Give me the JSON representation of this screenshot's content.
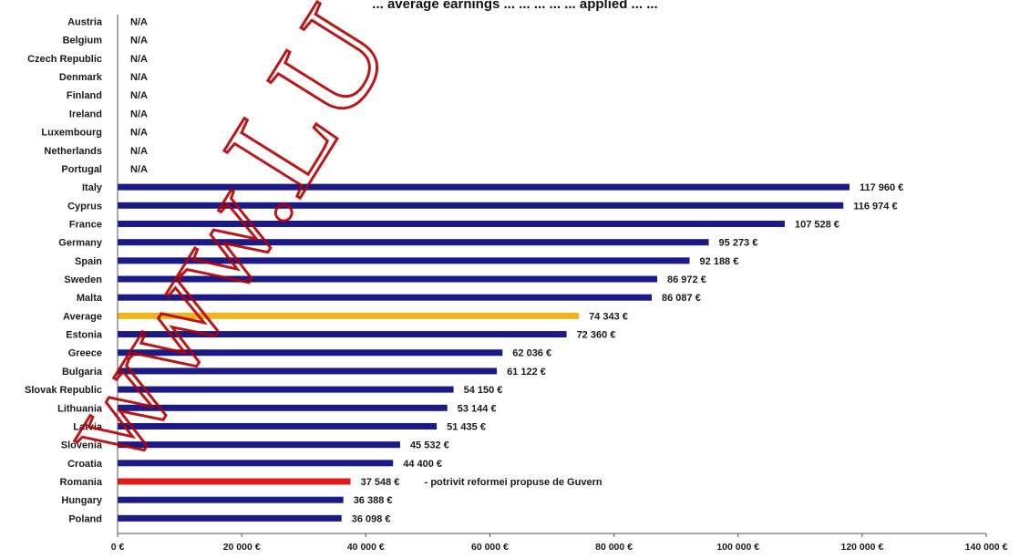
{
  "title": "... average earnings ... ... ... ... ... applied ... ...",
  "watermark": "www.LU",
  "colors": {
    "default_bar": "#1c1a86",
    "highlight_bar": "#f5b21a",
    "focus_bar": "#e41b1b",
    "axis": "#555555",
    "watermark": "#b30000"
  },
  "chart_data": {
    "type": "bar",
    "orientation": "horizontal",
    "xlim": [
      0,
      140000
    ],
    "x_ticks": [
      0,
      20000,
      40000,
      60000,
      80000,
      100000,
      120000,
      140000
    ],
    "x_tick_labels": [
      "0 €",
      "20 000 €",
      "40 000 €",
      "60 000 €",
      "80 000 €",
      "100 000 €",
      "120 000 €",
      "140 000 €"
    ],
    "grid": false,
    "categories": [
      "Austria",
      "Belgium",
      "Czech Republic",
      "Denmark",
      "Finland",
      "Ireland",
      "Luxembourg",
      "Netherlands",
      "Portugal",
      "Italy",
      "Cyprus",
      "France",
      "Germany",
      "Spain",
      "Sweden",
      "Malta",
      "Average",
      "Estonia",
      "Greece",
      "Bulgaria",
      "Slovak Republic",
      "Lithuania",
      "Latvia",
      "Slovenia",
      "Croatia",
      "Romania",
      "Hungary",
      "Poland"
    ],
    "values": [
      null,
      null,
      null,
      null,
      null,
      null,
      null,
      null,
      null,
      117960,
      116974,
      107528,
      95273,
      92188,
      86972,
      86087,
      74343,
      72360,
      62036,
      61122,
      54150,
      53144,
      51435,
      45532,
      44400,
      37548,
      36388,
      36098
    ],
    "value_labels": [
      "N/A",
      "N/A",
      "N/A",
      "N/A",
      "N/A",
      "N/A",
      "N/A",
      "N/A",
      "N/A",
      "117 960 €",
      "116 974 €",
      "107 528 €",
      "95 273 €",
      "92 188 €",
      "86 972 €",
      "86 087 €",
      "74 343 €",
      "72 360 €",
      "62 036 €",
      "61 122 €",
      "54 150 €",
      "53 144 €",
      "51 435 €",
      "45 532 €",
      "44 400 €",
      "37 548 €",
      "36 388 €",
      "36 098 €"
    ],
    "highlight": {
      "Average": "highlight_bar",
      "Romania": "focus_bar"
    },
    "annotations": [
      {
        "category": "Romania",
        "text": "- potrivit reformei propuse de Guvern"
      }
    ]
  }
}
